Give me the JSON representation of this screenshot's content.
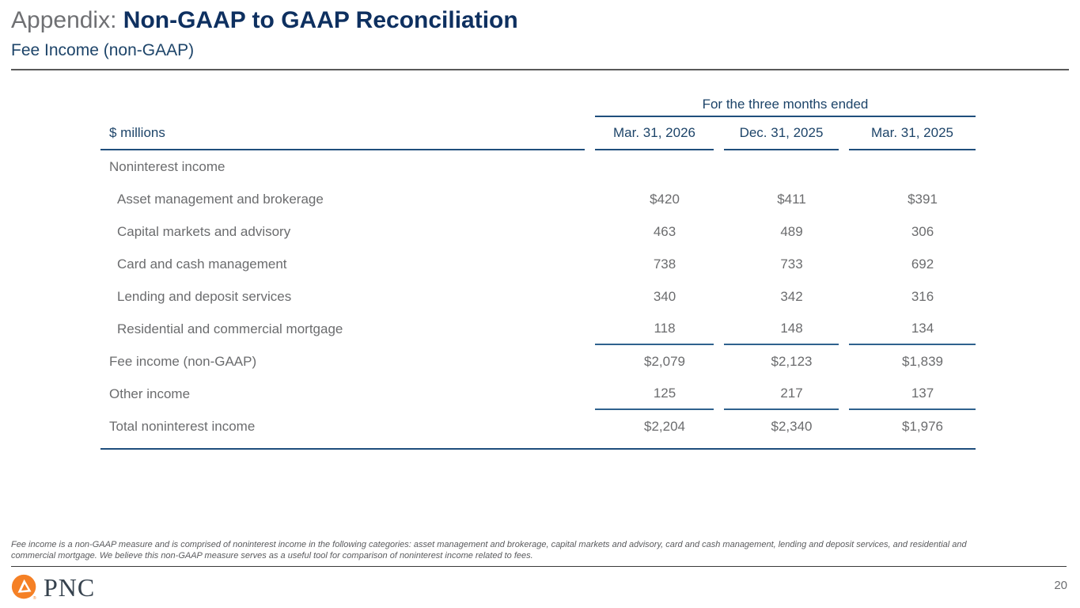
{
  "slide": {
    "title_prefix": "Appendix: ",
    "title_main": "Non-GAAP to GAAP Reconciliation",
    "subtitle": "Fee Income (non-GAAP)"
  },
  "table": {
    "units_label": "$ millions",
    "period_header": "For the three months ended",
    "columns": [
      "Mar. 31, 2026",
      "Dec. 31, 2025",
      "Mar. 31, 2025"
    ],
    "rows": [
      {
        "label": "Noninterest income",
        "indent": false,
        "values": [
          "",
          "",
          ""
        ],
        "rule_after": false
      },
      {
        "label": "Asset management and brokerage",
        "indent": true,
        "values": [
          "$420",
          "$411",
          "$391"
        ],
        "rule_after": false
      },
      {
        "label": "Capital markets and advisory",
        "indent": true,
        "values": [
          "463",
          "489",
          "306"
        ],
        "rule_after": false
      },
      {
        "label": "Card and cash management",
        "indent": true,
        "values": [
          "738",
          "733",
          "692"
        ],
        "rule_after": false
      },
      {
        "label": "Lending and deposit services",
        "indent": true,
        "values": [
          "340",
          "342",
          "316"
        ],
        "rule_after": false
      },
      {
        "label": "Residential and commercial mortgage",
        "indent": true,
        "values": [
          "118",
          "148",
          "134"
        ],
        "rule_after": true
      },
      {
        "label": "Fee income (non-GAAP)",
        "indent": false,
        "values": [
          "$2,079",
          "$2,123",
          "$1,839"
        ],
        "rule_after": false
      },
      {
        "label": "Other income",
        "indent": false,
        "values": [
          "125",
          "217",
          "137"
        ],
        "rule_after": true
      },
      {
        "label": "Total noninterest income",
        "indent": false,
        "values": [
          "$2,204",
          "$2,340",
          "$1,976"
        ],
        "rule_after": false
      }
    ]
  },
  "footnote": {
    "text": "Fee income is a non-GAAP measure and is comprised of noninterest income in the following categories: asset management and brokerage, capital markets and advisory, card and cash management, lending and deposit services, and residential and commercial mortgage. We believe this non-GAAP measure serves as a useful tool for comparison of noninterest income related to fees."
  },
  "footer": {
    "brand": "PNC",
    "page_number": "20"
  },
  "colors": {
    "brand_orange": "#F58025",
    "title_navy": "#0E3060",
    "header_navy": "#1D4469",
    "line_navy": "#1F4E7C",
    "line_steel": "#2F628E",
    "text_gray": "#6B6C6E",
    "wordmark_slate": "#36424E"
  }
}
